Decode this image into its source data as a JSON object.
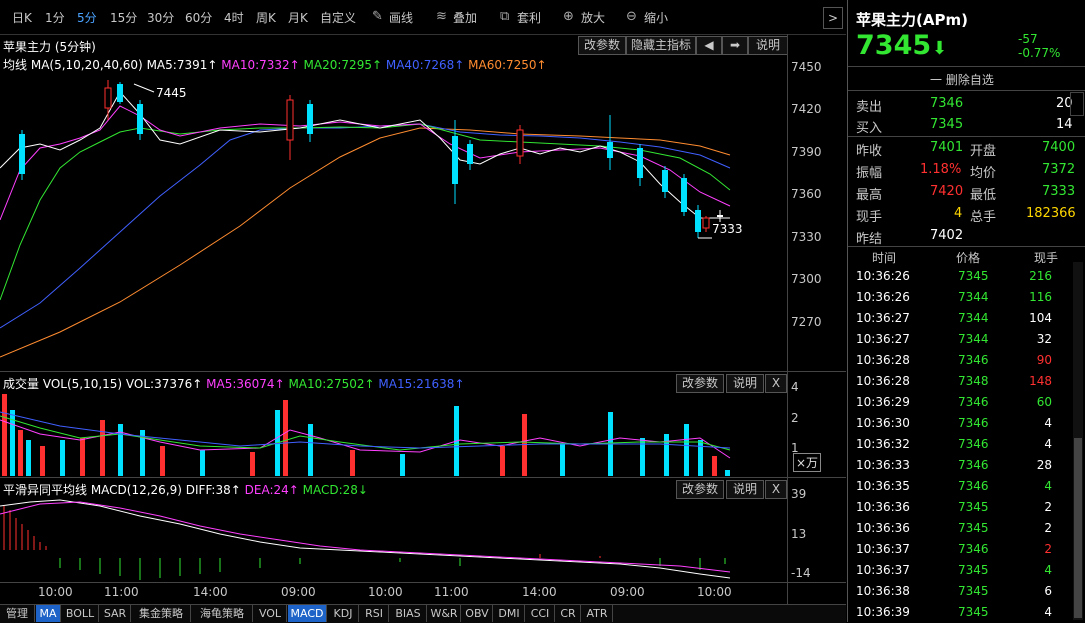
{
  "toolbar": {
    "periods": [
      "日K",
      "1分",
      "5分",
      "15分",
      "30分",
      "60分",
      "4时",
      "周K",
      "月K",
      "自定义"
    ],
    "active_period": "5分",
    "draw_label": "画线",
    "overlay_label": "叠加",
    "arbitrage_label": "套利",
    "zoom_in_label": "放大",
    "zoom_out_label": "缩小",
    "next": ">"
  },
  "main_chart": {
    "title": "苹果主力 (5分钟)",
    "buttons": {
      "params": "改参数",
      "hide": "隐藏主指标",
      "prev": "◀",
      "next": "➡",
      "help": "说明"
    },
    "ma_legend": {
      "label": "均线",
      "params": "MA(5,10,20,40,60)",
      "ma5": "MA5:7391↑",
      "ma10": "MA10:7332↑",
      "ma20": "MA20:7295↑",
      "ma40": "MA40:7268↑",
      "ma60": "MA60:7250↑"
    },
    "high_annot": "7445",
    "low_annot": "7333",
    "y_ticks": [
      "7450",
      "7420",
      "7390",
      "7360",
      "7330",
      "7300",
      "7270"
    ]
  },
  "volume_panel": {
    "title": "成交量 VOL(5,10,15) VOL:37376↑",
    "ma5": "MA5:36074↑",
    "ma10": "MA10:27502↑",
    "ma15": "MA15:21638↑",
    "buttons": {
      "params": "改参数",
      "help": "说明",
      "close": "X"
    },
    "y_ticks": [
      "4",
      "2",
      "1"
    ],
    "unit": "×万"
  },
  "macd_panel": {
    "title": "平滑异同平均线 MACD(12,26,9) DIFF:38↑",
    "dea": "DEA:24↑",
    "macd": "MACD:28↓",
    "buttons": {
      "params": "改参数",
      "help": "说明",
      "close": "X"
    },
    "y_ticks": [
      "39",
      "13",
      "-14"
    ]
  },
  "x_ticks": [
    "10:00",
    "11:00",
    "14:00",
    "09:00",
    "10:00",
    "11:00",
    "14:00",
    "09:00",
    "10:00"
  ],
  "bottom_tabs": [
    "管理",
    "MA",
    "BOLL",
    "SAR",
    "集金策略",
    "海龟策略",
    "VOL",
    "MACD",
    "KDJ",
    "RSI",
    "BIAS",
    "W&R",
    "OBV",
    "DMI",
    "CCI",
    "CR",
    "ATR"
  ],
  "active_tabs": [
    "MA",
    "MACD"
  ],
  "quote": {
    "name": "苹果主力(APm)",
    "price": "7345",
    "change": "-57",
    "change_pct": "-0.77%",
    "delete_label": "一 删除自选",
    "sell_label": "卖出",
    "sell_price": "7346",
    "sell_vol": "20",
    "buy_label": "买入",
    "buy_price": "7345",
    "buy_vol": "14",
    "prev_close_label": "昨收",
    "prev_close": "7401",
    "open_label": "开盘",
    "open": "7400",
    "amp_label": "振幅",
    "amp": "1.18%",
    "avg_label": "均价",
    "avg": "7372",
    "high_label": "最高",
    "high": "7420",
    "low_label": "最低",
    "low": "7333",
    "cur_vol_label": "现手",
    "cur_vol": "4",
    "total_vol_label": "总手",
    "total_vol": "182366",
    "prev_settle_label": "昨结",
    "prev_settle": "7402"
  },
  "tick_header": {
    "time": "时间",
    "price": "价格",
    "vol": "现手"
  },
  "ticks": [
    {
      "time": "10:36:26",
      "price": "7345",
      "vol": "216",
      "color": "green"
    },
    {
      "time": "10:36:26",
      "price": "7344",
      "vol": "116",
      "color": "green"
    },
    {
      "time": "10:36:27",
      "price": "7344",
      "vol": "104",
      "color": "white"
    },
    {
      "time": "10:36:27",
      "price": "7344",
      "vol": "32",
      "color": "white"
    },
    {
      "time": "10:36:28",
      "price": "7346",
      "vol": "90",
      "color": "red"
    },
    {
      "time": "10:36:28",
      "price": "7348",
      "vol": "148",
      "color": "red"
    },
    {
      "time": "10:36:29",
      "price": "7346",
      "vol": "60",
      "color": "green"
    },
    {
      "time": "10:36:30",
      "price": "7346",
      "vol": "4",
      "color": "white"
    },
    {
      "time": "10:36:32",
      "price": "7346",
      "vol": "4",
      "color": "white"
    },
    {
      "time": "10:36:33",
      "price": "7346",
      "vol": "28",
      "color": "white"
    },
    {
      "time": "10:36:35",
      "price": "7346",
      "vol": "4",
      "color": "green"
    },
    {
      "time": "10:36:36",
      "price": "7345",
      "vol": "2",
      "color": "white"
    },
    {
      "time": "10:36:36",
      "price": "7345",
      "vol": "2",
      "color": "white"
    },
    {
      "time": "10:36:37",
      "price": "7346",
      "vol": "2",
      "color": "red"
    },
    {
      "time": "10:36:37",
      "price": "7345",
      "vol": "4",
      "color": "green"
    },
    {
      "time": "10:36:38",
      "price": "7345",
      "vol": "6",
      "color": "white"
    },
    {
      "time": "10:36:39",
      "price": "7345",
      "vol": "4",
      "color": "white"
    }
  ]
}
